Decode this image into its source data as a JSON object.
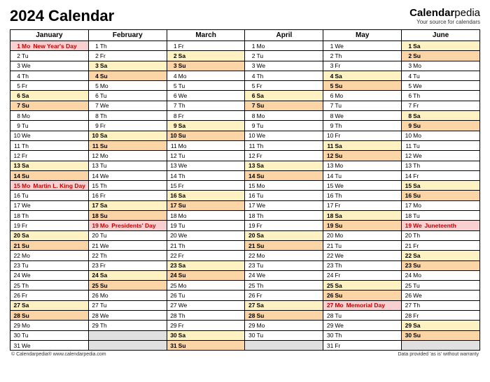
{
  "title": "2024 Calendar",
  "brand": {
    "name1": "Calendar",
    "name2": "pedia",
    "tagline": "Your source for calendars"
  },
  "footer": {
    "left": "© Calendarpedia®   www.calendarpedia.com",
    "right": "Data provided 'as is' without warranty"
  },
  "colors": {
    "sat": "#fff2c2",
    "sun": "#fbd5a6",
    "holiday": "#f8d0d0",
    "empty": "#e0e0e0"
  },
  "months": [
    "January",
    "February",
    "March",
    "April",
    "May",
    "June"
  ],
  "maxDays": 31,
  "data": {
    "January": [
      {
        "d": 1,
        "w": "Mo",
        "t": "holiday",
        "h": "New Year's Day"
      },
      {
        "d": 2,
        "w": "Tu"
      },
      {
        "d": 3,
        "w": "We"
      },
      {
        "d": 4,
        "w": "Th"
      },
      {
        "d": 5,
        "w": "Fr"
      },
      {
        "d": 6,
        "w": "Sa",
        "t": "sat"
      },
      {
        "d": 7,
        "w": "Su",
        "t": "sun"
      },
      {
        "d": 8,
        "w": "Mo"
      },
      {
        "d": 9,
        "w": "Tu"
      },
      {
        "d": 10,
        "w": "We"
      },
      {
        "d": 11,
        "w": "Th"
      },
      {
        "d": 12,
        "w": "Fr"
      },
      {
        "d": 13,
        "w": "Sa",
        "t": "sat"
      },
      {
        "d": 14,
        "w": "Su",
        "t": "sun"
      },
      {
        "d": 15,
        "w": "Mo",
        "t": "holiday",
        "h": "Martin L. King Day"
      },
      {
        "d": 16,
        "w": "Tu"
      },
      {
        "d": 17,
        "w": "We"
      },
      {
        "d": 18,
        "w": "Th"
      },
      {
        "d": 19,
        "w": "Fr"
      },
      {
        "d": 20,
        "w": "Sa",
        "t": "sat"
      },
      {
        "d": 21,
        "w": "Su",
        "t": "sun"
      },
      {
        "d": 22,
        "w": "Mo"
      },
      {
        "d": 23,
        "w": "Tu"
      },
      {
        "d": 24,
        "w": "We"
      },
      {
        "d": 25,
        "w": "Th"
      },
      {
        "d": 26,
        "w": "Fr"
      },
      {
        "d": 27,
        "w": "Sa",
        "t": "sat"
      },
      {
        "d": 28,
        "w": "Su",
        "t": "sun"
      },
      {
        "d": 29,
        "w": "Mo"
      },
      {
        "d": 30,
        "w": "Tu"
      },
      {
        "d": 31,
        "w": "We"
      }
    ],
    "February": [
      {
        "d": 1,
        "w": "Th"
      },
      {
        "d": 2,
        "w": "Fr"
      },
      {
        "d": 3,
        "w": "Sa",
        "t": "sat"
      },
      {
        "d": 4,
        "w": "Su",
        "t": "sun"
      },
      {
        "d": 5,
        "w": "Mo"
      },
      {
        "d": 6,
        "w": "Tu"
      },
      {
        "d": 7,
        "w": "We"
      },
      {
        "d": 8,
        "w": "Th"
      },
      {
        "d": 9,
        "w": "Fr"
      },
      {
        "d": 10,
        "w": "Sa",
        "t": "sat"
      },
      {
        "d": 11,
        "w": "Su",
        "t": "sun"
      },
      {
        "d": 12,
        "w": "Mo"
      },
      {
        "d": 13,
        "w": "Tu"
      },
      {
        "d": 14,
        "w": "We"
      },
      {
        "d": 15,
        "w": "Th"
      },
      {
        "d": 16,
        "w": "Fr"
      },
      {
        "d": 17,
        "w": "Sa",
        "t": "sat"
      },
      {
        "d": 18,
        "w": "Su",
        "t": "sun"
      },
      {
        "d": 19,
        "w": "Mo",
        "t": "holiday",
        "h": "Presidents' Day"
      },
      {
        "d": 20,
        "w": "Tu"
      },
      {
        "d": 21,
        "w": "We"
      },
      {
        "d": 22,
        "w": "Th"
      },
      {
        "d": 23,
        "w": "Fr"
      },
      {
        "d": 24,
        "w": "Sa",
        "t": "sat"
      },
      {
        "d": 25,
        "w": "Su",
        "t": "sun"
      },
      {
        "d": 26,
        "w": "Mo"
      },
      {
        "d": 27,
        "w": "Tu"
      },
      {
        "d": 28,
        "w": "We"
      },
      {
        "d": 29,
        "w": "Th"
      }
    ],
    "March": [
      {
        "d": 1,
        "w": "Fr"
      },
      {
        "d": 2,
        "w": "Sa",
        "t": "sat"
      },
      {
        "d": 3,
        "w": "Su",
        "t": "sun"
      },
      {
        "d": 4,
        "w": "Mo"
      },
      {
        "d": 5,
        "w": "Tu"
      },
      {
        "d": 6,
        "w": "We"
      },
      {
        "d": 7,
        "w": "Th"
      },
      {
        "d": 8,
        "w": "Fr"
      },
      {
        "d": 9,
        "w": "Sa",
        "t": "sat"
      },
      {
        "d": 10,
        "w": "Su",
        "t": "sun"
      },
      {
        "d": 11,
        "w": "Mo"
      },
      {
        "d": 12,
        "w": "Tu"
      },
      {
        "d": 13,
        "w": "We"
      },
      {
        "d": 14,
        "w": "Th"
      },
      {
        "d": 15,
        "w": "Fr"
      },
      {
        "d": 16,
        "w": "Sa",
        "t": "sat"
      },
      {
        "d": 17,
        "w": "Su",
        "t": "sun"
      },
      {
        "d": 18,
        "w": "Mo"
      },
      {
        "d": 19,
        "w": "Tu"
      },
      {
        "d": 20,
        "w": "We"
      },
      {
        "d": 21,
        "w": "Th"
      },
      {
        "d": 22,
        "w": "Fr"
      },
      {
        "d": 23,
        "w": "Sa",
        "t": "sat"
      },
      {
        "d": 24,
        "w": "Su",
        "t": "sun"
      },
      {
        "d": 25,
        "w": "Mo"
      },
      {
        "d": 26,
        "w": "Tu"
      },
      {
        "d": 27,
        "w": "We"
      },
      {
        "d": 28,
        "w": "Th"
      },
      {
        "d": 29,
        "w": "Fr"
      },
      {
        "d": 30,
        "w": "Sa",
        "t": "sat"
      },
      {
        "d": 31,
        "w": "Su",
        "t": "sun"
      }
    ],
    "April": [
      {
        "d": 1,
        "w": "Mo"
      },
      {
        "d": 2,
        "w": "Tu"
      },
      {
        "d": 3,
        "w": "We"
      },
      {
        "d": 4,
        "w": "Th"
      },
      {
        "d": 5,
        "w": "Fr"
      },
      {
        "d": 6,
        "w": "Sa",
        "t": "sat"
      },
      {
        "d": 7,
        "w": "Su",
        "t": "sun"
      },
      {
        "d": 8,
        "w": "Mo"
      },
      {
        "d": 9,
        "w": "Tu"
      },
      {
        "d": 10,
        "w": "We"
      },
      {
        "d": 11,
        "w": "Th"
      },
      {
        "d": 12,
        "w": "Fr"
      },
      {
        "d": 13,
        "w": "Sa",
        "t": "sat"
      },
      {
        "d": 14,
        "w": "Su",
        "t": "sun"
      },
      {
        "d": 15,
        "w": "Mo"
      },
      {
        "d": 16,
        "w": "Tu"
      },
      {
        "d": 17,
        "w": "We"
      },
      {
        "d": 18,
        "w": "Th"
      },
      {
        "d": 19,
        "w": "Fr"
      },
      {
        "d": 20,
        "w": "Sa",
        "t": "sat"
      },
      {
        "d": 21,
        "w": "Su",
        "t": "sun"
      },
      {
        "d": 22,
        "w": "Mo"
      },
      {
        "d": 23,
        "w": "Tu"
      },
      {
        "d": 24,
        "w": "We"
      },
      {
        "d": 25,
        "w": "Th"
      },
      {
        "d": 26,
        "w": "Fr"
      },
      {
        "d": 27,
        "w": "Sa",
        "t": "sat"
      },
      {
        "d": 28,
        "w": "Su",
        "t": "sun"
      },
      {
        "d": 29,
        "w": "Mo"
      },
      {
        "d": 30,
        "w": "Tu"
      }
    ],
    "May": [
      {
        "d": 1,
        "w": "We"
      },
      {
        "d": 2,
        "w": "Th"
      },
      {
        "d": 3,
        "w": "Fr"
      },
      {
        "d": 4,
        "w": "Sa",
        "t": "sat"
      },
      {
        "d": 5,
        "w": "Su",
        "t": "sun"
      },
      {
        "d": 6,
        "w": "Mo"
      },
      {
        "d": 7,
        "w": "Tu"
      },
      {
        "d": 8,
        "w": "We"
      },
      {
        "d": 9,
        "w": "Th"
      },
      {
        "d": 10,
        "w": "Fr"
      },
      {
        "d": 11,
        "w": "Sa",
        "t": "sat"
      },
      {
        "d": 12,
        "w": "Su",
        "t": "sun"
      },
      {
        "d": 13,
        "w": "Mo"
      },
      {
        "d": 14,
        "w": "Tu"
      },
      {
        "d": 15,
        "w": "We"
      },
      {
        "d": 16,
        "w": "Th"
      },
      {
        "d": 17,
        "w": "Fr"
      },
      {
        "d": 18,
        "w": "Sa",
        "t": "sat"
      },
      {
        "d": 19,
        "w": "Su",
        "t": "sun"
      },
      {
        "d": 20,
        "w": "Mo"
      },
      {
        "d": 21,
        "w": "Tu"
      },
      {
        "d": 22,
        "w": "We"
      },
      {
        "d": 23,
        "w": "Th"
      },
      {
        "d": 24,
        "w": "Fr"
      },
      {
        "d": 25,
        "w": "Sa",
        "t": "sat"
      },
      {
        "d": 26,
        "w": "Su",
        "t": "sun"
      },
      {
        "d": 27,
        "w": "Mo",
        "t": "holiday",
        "h": "Memorial Day"
      },
      {
        "d": 28,
        "w": "Tu"
      },
      {
        "d": 29,
        "w": "We"
      },
      {
        "d": 30,
        "w": "Th"
      },
      {
        "d": 31,
        "w": "Fr"
      }
    ],
    "June": [
      {
        "d": 1,
        "w": "Sa",
        "t": "sat"
      },
      {
        "d": 2,
        "w": "Su",
        "t": "sun"
      },
      {
        "d": 3,
        "w": "Mo"
      },
      {
        "d": 4,
        "w": "Tu"
      },
      {
        "d": 5,
        "w": "We"
      },
      {
        "d": 6,
        "w": "Th"
      },
      {
        "d": 7,
        "w": "Fr"
      },
      {
        "d": 8,
        "w": "Sa",
        "t": "sat"
      },
      {
        "d": 9,
        "w": "Su",
        "t": "sun"
      },
      {
        "d": 10,
        "w": "Mo"
      },
      {
        "d": 11,
        "w": "Tu"
      },
      {
        "d": 12,
        "w": "We"
      },
      {
        "d": 13,
        "w": "Th"
      },
      {
        "d": 14,
        "w": "Fr"
      },
      {
        "d": 15,
        "w": "Sa",
        "t": "sat"
      },
      {
        "d": 16,
        "w": "Su",
        "t": "sun"
      },
      {
        "d": 17,
        "w": "Mo"
      },
      {
        "d": 18,
        "w": "Tu"
      },
      {
        "d": 19,
        "w": "We",
        "t": "holiday",
        "h": "Juneteenth"
      },
      {
        "d": 20,
        "w": "Th"
      },
      {
        "d": 21,
        "w": "Fr"
      },
      {
        "d": 22,
        "w": "Sa",
        "t": "sat"
      },
      {
        "d": 23,
        "w": "Su",
        "t": "sun"
      },
      {
        "d": 24,
        "w": "Mo"
      },
      {
        "d": 25,
        "w": "Tu"
      },
      {
        "d": 26,
        "w": "We"
      },
      {
        "d": 27,
        "w": "Th"
      },
      {
        "d": 28,
        "w": "Fr"
      },
      {
        "d": 29,
        "w": "Sa",
        "t": "sat"
      },
      {
        "d": 30,
        "w": "Su",
        "t": "sun"
      }
    ]
  }
}
